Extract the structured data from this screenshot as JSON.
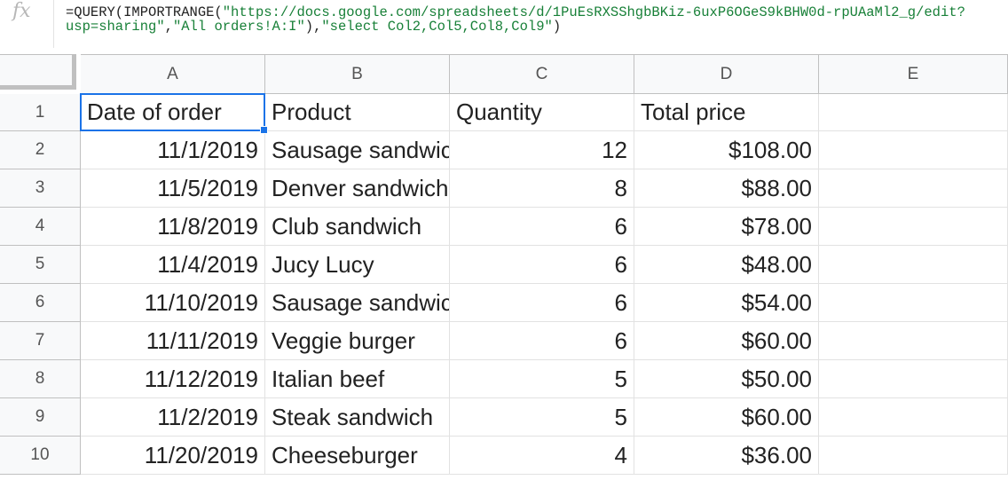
{
  "formula_bar": {
    "icon": "fx-icon",
    "fx_label": "fx",
    "line1_prefix": "=QUERY(IMPORTRANGE(",
    "line1_url": "\"https://docs.google.com/spreadsheets/d/1PuEsRXSShgbBKiz-6uxP6OGeS9kBHW0d-rpUAaMl2_g/edit?",
    "line2_url": "usp=sharing\"",
    "line2_sep1": ",",
    "line2_range": "\"All orders!A:I\"",
    "line2_sep2": "),",
    "line2_query": "\"select Col2,Col5,Col8,Col9\"",
    "line2_end": ")"
  },
  "columns": [
    "A",
    "B",
    "C",
    "D",
    "E"
  ],
  "rows": [
    "1",
    "2",
    "3",
    "4",
    "5",
    "6",
    "7",
    "8",
    "9",
    "10"
  ],
  "header_row": [
    "Date of order",
    "Product",
    "Quantity",
    "Total price",
    ""
  ],
  "data": [
    [
      "11/1/2019",
      "Sausage sandwich",
      "12",
      "$108.00",
      ""
    ],
    [
      "11/5/2019",
      "Denver sandwich",
      "8",
      "$88.00",
      ""
    ],
    [
      "11/8/2019",
      "Club sandwich",
      "6",
      "$78.00",
      ""
    ],
    [
      "11/4/2019",
      "Jucy Lucy",
      "6",
      "$48.00",
      ""
    ],
    [
      "11/10/2019",
      "Sausage sandwich",
      "6",
      "$54.00",
      ""
    ],
    [
      "11/11/2019",
      "Veggie burger",
      "6",
      "$60.00",
      ""
    ],
    [
      "11/12/2019",
      "Italian beef",
      "5",
      "$50.00",
      ""
    ],
    [
      "11/2/2019",
      "Steak sandwich",
      "5",
      "$60.00",
      ""
    ],
    [
      "11/20/2019",
      "Cheeseburger",
      "4",
      "$36.00",
      ""
    ]
  ],
  "selection": {
    "cell": "A1",
    "color": "#1a73e8"
  }
}
